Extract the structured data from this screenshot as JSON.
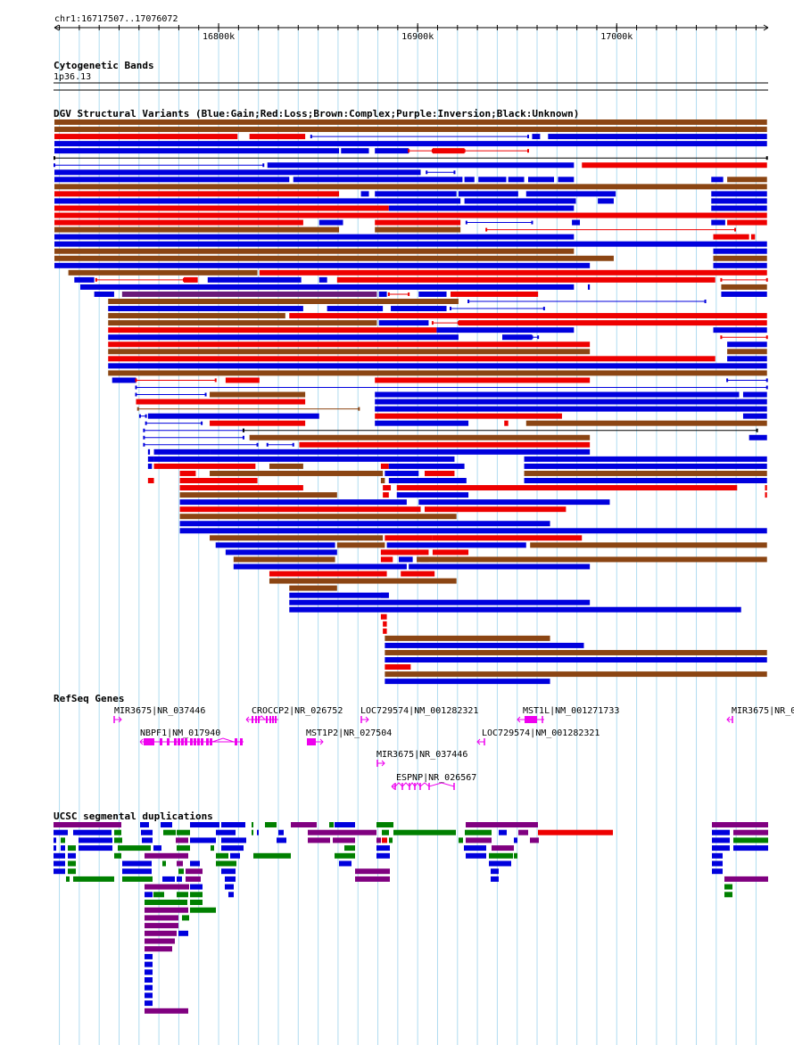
{
  "ruler": {
    "coords": "chr1:16717507..17076072",
    "start": 16717507,
    "end": 17076072,
    "ticks": [
      {
        "pos": 16800000,
        "label": "16800k"
      },
      {
        "pos": 16900000,
        "label": "16900k"
      },
      {
        "pos": 17000000,
        "label": "17000k"
      }
    ]
  },
  "cytoband": {
    "title": "Cytogenetic Bands",
    "label": "1p36.13"
  },
  "dgv": {
    "title": "DGV Structural Variants (Blue:Gain;Red:Loss;Brown:Complex;Purple:Inversion;Black:Unknown)",
    "colors": {
      "B": "#0000dd",
      "R": "#ee0000",
      "N": "#8b4513",
      "P": "#6a1b7a",
      "K": "#000000"
    },
    "note": "Each row: [kb_start, kb_end, color_code, style] where style 's' = solid bar, 'l' = thin line with end caps; positions in kb from 16717507",
    "rows": [
      [
        [
          0,
          358,
          "N",
          "s"
        ]
      ],
      [
        [
          0,
          358,
          "N",
          "s"
        ]
      ],
      [
        [
          0,
          92,
          "R",
          "s"
        ],
        [
          98,
          126,
          "R",
          "s"
        ],
        [
          129,
          238,
          "B",
          "l"
        ],
        [
          240,
          244,
          "B",
          "s"
        ],
        [
          248,
          358,
          "B",
          "s"
        ]
      ],
      [
        [
          0,
          358,
          "B",
          "s"
        ]
      ],
      [
        [
          0,
          143,
          "B",
          "s"
        ],
        [
          144,
          158,
          "B",
          "s"
        ],
        [
          161,
          178,
          "B",
          "s"
        ],
        [
          178,
          190,
          "R",
          "l"
        ],
        [
          190,
          206,
          "R",
          "s"
        ],
        [
          206,
          238,
          "R",
          "l"
        ]
      ],
      [
        [
          0,
          358,
          "K",
          "l"
        ]
      ],
      [
        [
          0,
          105,
          "B",
          "l"
        ],
        [
          107,
          261,
          "B",
          "s"
        ],
        [
          265,
          358,
          "R",
          "s"
        ]
      ],
      [
        [
          0,
          184,
          "B",
          "s"
        ],
        [
          187,
          201,
          "B",
          "l"
        ]
      ],
      [
        [
          0,
          118,
          "B",
          "s"
        ],
        [
          120,
          205,
          "B",
          "s"
        ],
        [
          206,
          211,
          "B",
          "s"
        ],
        [
          213,
          227,
          "B",
          "s"
        ],
        [
          228,
          236,
          "B",
          "s"
        ],
        [
          238,
          251,
          "B",
          "s"
        ],
        [
          253,
          261,
          "B",
          "s"
        ],
        [
          330,
          336,
          "B",
          "s"
        ],
        [
          338,
          358,
          "N",
          "s"
        ]
      ],
      [
        [
          0,
          358,
          "N",
          "s"
        ]
      ],
      [
        [
          0,
          143,
          "R",
          "s"
        ],
        [
          154,
          158,
          "B",
          "s"
        ],
        [
          161,
          202,
          "B",
          "s"
        ],
        [
          203,
          233,
          "B",
          "s"
        ],
        [
          237,
          282,
          "B",
          "s"
        ],
        [
          330,
          358,
          "B",
          "s"
        ]
      ],
      [
        [
          0,
          204,
          "B",
          "s"
        ],
        [
          206,
          262,
          "B",
          "s"
        ],
        [
          273,
          281,
          "B",
          "s"
        ],
        [
          330,
          358,
          "B",
          "s"
        ]
      ],
      [
        [
          0,
          168,
          "R",
          "s"
        ],
        [
          168,
          261,
          "B",
          "s"
        ],
        [
          330,
          358,
          "B",
          "s"
        ]
      ],
      [
        [
          0,
          358,
          "R",
          "s"
        ]
      ],
      [
        [
          0,
          125,
          "R",
          "s"
        ],
        [
          133,
          145,
          "B",
          "s"
        ],
        [
          161,
          204,
          "R",
          "s"
        ],
        [
          207,
          240,
          "B",
          "l"
        ],
        [
          260,
          264,
          "B",
          "s"
        ],
        [
          330,
          337,
          "B",
          "s"
        ],
        [
          338,
          358,
          "R",
          "s"
        ]
      ],
      [
        [
          0,
          143,
          "N",
          "s"
        ],
        [
          161,
          204,
          "N",
          "s"
        ],
        [
          217,
          342,
          "R",
          "l"
        ]
      ],
      [
        [
          0,
          261,
          "B",
          "s"
        ],
        [
          331,
          349,
          "R",
          "s"
        ],
        [
          350,
          352,
          "R",
          "s"
        ]
      ],
      [
        [
          0,
          358,
          "B",
          "s"
        ]
      ],
      [
        [
          0,
          261,
          "N",
          "s"
        ],
        [
          331,
          358,
          "B",
          "s"
        ]
      ],
      [
        [
          0,
          281,
          "N",
          "s"
        ],
        [
          331,
          358,
          "N",
          "s"
        ]
      ],
      [
        [
          0,
          269,
          "B",
          "s"
        ],
        [
          331,
          358,
          "B",
          "s"
        ]
      ],
      [
        [
          7,
          102,
          "N",
          "s"
        ],
        [
          103,
          358,
          "R",
          "s"
        ]
      ],
      [
        [
          10,
          20,
          "B",
          "s"
        ],
        [
          21,
          65,
          "R",
          "l"
        ],
        [
          65,
          72,
          "R",
          "s"
        ],
        [
          77,
          124,
          "B",
          "s"
        ],
        [
          133,
          137,
          "B",
          "s"
        ],
        [
          142,
          332,
          "R",
          "s"
        ],
        [
          335,
          358,
          "R",
          "l"
        ]
      ],
      [
        [
          13,
          261,
          "B",
          "s"
        ],
        [
          268,
          269,
          "B",
          "s"
        ],
        [
          335,
          358,
          "N",
          "s"
        ]
      ],
      [
        [
          20,
          30,
          "B",
          "s"
        ],
        [
          34,
          162,
          "P",
          "s"
        ],
        [
          163,
          167,
          "B",
          "s"
        ],
        [
          168,
          178,
          "R",
          "l"
        ],
        [
          183,
          197,
          "B",
          "s"
        ],
        [
          199,
          243,
          "R",
          "s"
        ],
        [
          335,
          358,
          "B",
          "s"
        ]
      ],
      [
        [
          27,
          203,
          "N",
          "s"
        ],
        [
          208,
          327,
          "B",
          "l"
        ]
      ],
      [
        [
          27,
          125,
          "B",
          "s"
        ],
        [
          137,
          165,
          "B",
          "s"
        ],
        [
          169,
          197,
          "B",
          "s"
        ],
        [
          199,
          246,
          "B",
          "l"
        ]
      ],
      [
        [
          27,
          116,
          "N",
          "s"
        ],
        [
          118,
          358,
          "R",
          "s"
        ]
      ],
      [
        [
          27,
          162,
          "N",
          "s"
        ],
        [
          163,
          188,
          "B",
          "s"
        ],
        [
          190,
          203,
          "R",
          "l"
        ],
        [
          203,
          358,
          "R",
          "s"
        ]
      ],
      [
        [
          27,
          192,
          "R",
          "s"
        ],
        [
          192,
          261,
          "B",
          "s"
        ],
        [
          331,
          358,
          "B",
          "s"
        ]
      ],
      [
        [
          27,
          203,
          "B",
          "s"
        ],
        [
          225,
          240,
          "B",
          "s"
        ],
        [
          240,
          243,
          "B",
          "l"
        ],
        [
          335,
          358,
          "R",
          "l"
        ]
      ],
      [
        [
          27,
          269,
          "R",
          "s"
        ],
        [
          338,
          358,
          "B",
          "s"
        ]
      ],
      [
        [
          27,
          269,
          "N",
          "s"
        ],
        [
          338,
          358,
          "N",
          "s"
        ]
      ],
      [
        [
          27,
          332,
          "R",
          "s"
        ],
        [
          338,
          358,
          "B",
          "s"
        ]
      ],
      [
        [
          27,
          358,
          "B",
          "s"
        ]
      ],
      [
        [
          27,
          358,
          "N",
          "s"
        ]
      ],
      [
        [
          29,
          41,
          "B",
          "s"
        ],
        [
          41,
          81,
          "R",
          "l"
        ],
        [
          86,
          103,
          "R",
          "s"
        ],
        [
          161,
          269,
          "R",
          "s"
        ],
        [
          338,
          358,
          "B",
          "l"
        ]
      ],
      [
        [
          41,
          358,
          "B",
          "l"
        ]
      ],
      [
        [
          41,
          76,
          "B",
          "l"
        ],
        [
          78,
          126,
          "N",
          "s"
        ],
        [
          161,
          344,
          "B",
          "s"
        ],
        [
          346,
          358,
          "B",
          "s"
        ]
      ],
      [
        [
          41,
          126,
          "R",
          "s"
        ],
        [
          161,
          358,
          "B",
          "s"
        ]
      ],
      [
        [
          42,
          153,
          "N",
          "l"
        ],
        [
          161,
          358,
          "B",
          "s"
        ]
      ],
      [
        [
          43,
          46,
          "B",
          "l"
        ],
        [
          47,
          133,
          "B",
          "s"
        ],
        [
          161,
          255,
          "R",
          "s"
        ],
        [
          346,
          358,
          "B",
          "s"
        ]
      ],
      [
        [
          46,
          74,
          "B",
          "l"
        ],
        [
          78,
          126,
          "R",
          "s"
        ],
        [
          161,
          208,
          "B",
          "s"
        ],
        [
          226,
          228,
          "R",
          "s"
        ],
        [
          237,
          358,
          "N",
          "s"
        ]
      ],
      [
        [
          45,
          95,
          "B",
          "l"
        ],
        [
          95,
          353,
          "K",
          "l"
        ]
      ],
      [
        [
          45,
          95,
          "B",
          "l"
        ],
        [
          98,
          269,
          "N",
          "s"
        ],
        [
          349,
          358,
          "B",
          "s"
        ]
      ],
      [
        [
          45,
          102,
          "B",
          "l"
        ],
        [
          107,
          120,
          "B",
          "l"
        ],
        [
          123,
          269,
          "R",
          "s"
        ]
      ],
      [
        [
          47,
          48,
          "B",
          "s"
        ],
        [
          50,
          78,
          "B",
          "s"
        ],
        [
          78,
          269,
          "B",
          "s"
        ]
      ],
      [
        [
          47,
          50,
          "B",
          "s"
        ],
        [
          50,
          201,
          "B",
          "s"
        ],
        [
          236,
          358,
          "B",
          "s"
        ]
      ],
      [
        [
          47,
          49,
          "B",
          "s"
        ],
        [
          50,
          101,
          "R",
          "s"
        ],
        [
          108,
          125,
          "N",
          "s"
        ],
        [
          164,
          168,
          "R",
          "s"
        ],
        [
          168,
          206,
          "B",
          "s"
        ],
        [
          236,
          358,
          "B",
          "s"
        ]
      ],
      [
        [
          63,
          71,
          "R",
          "s"
        ],
        [
          78,
          165,
          "N",
          "s"
        ],
        [
          166,
          183,
          "B",
          "s"
        ],
        [
          186,
          201,
          "R",
          "s"
        ],
        [
          236,
          358,
          "N",
          "s"
        ]
      ],
      [
        [
          47,
          50,
          "R",
          "s"
        ],
        [
          63,
          102,
          "R",
          "s"
        ],
        [
          164,
          166,
          "N",
          "s"
        ],
        [
          168,
          207,
          "B",
          "s"
        ],
        [
          236,
          358,
          "B",
          "s"
        ]
      ],
      [
        [
          63,
          125,
          "R",
          "s"
        ],
        [
          165,
          169,
          "R",
          "s"
        ],
        [
          172,
          343,
          "R",
          "s"
        ],
        [
          357,
          358,
          "R",
          "s"
        ]
      ],
      [
        [
          63,
          142,
          "N",
          "s"
        ],
        [
          165,
          168,
          "R",
          "s"
        ],
        [
          172,
          208,
          "B",
          "s"
        ],
        [
          357,
          358,
          "R",
          "s"
        ]
      ],
      [
        [
          63,
          177,
          "B",
          "s"
        ],
        [
          183,
          279,
          "B",
          "s"
        ]
      ],
      [
        [
          63,
          184,
          "R",
          "s"
        ],
        [
          186,
          257,
          "R",
          "s"
        ]
      ],
      [
        [
          63,
          202,
          "N",
          "s"
        ]
      ],
      [
        [
          63,
          249,
          "B",
          "s"
        ]
      ],
      [
        [
          63,
          358,
          "B",
          "s"
        ]
      ],
      [
        [
          78,
          165,
          "N",
          "s"
        ],
        [
          166,
          190,
          "R",
          "s"
        ],
        [
          190,
          265,
          "R",
          "s"
        ]
      ],
      [
        [
          81,
          141,
          "B",
          "s"
        ],
        [
          142,
          166,
          "N",
          "s"
        ],
        [
          167,
          237,
          "B",
          "s"
        ],
        [
          239,
          358,
          "N",
          "s"
        ]
      ],
      [
        [
          86,
          142,
          "B",
          "s"
        ],
        [
          164,
          188,
          "R",
          "s"
        ],
        [
          190,
          208,
          "R",
          "s"
        ]
      ],
      [
        [
          90,
          141,
          "N",
          "s"
        ],
        [
          164,
          170,
          "R",
          "s"
        ],
        [
          173,
          180,
          "B",
          "s"
        ],
        [
          182,
          188,
          "N",
          "s"
        ],
        [
          184,
          358,
          "N",
          "s"
        ]
      ],
      [
        [
          90,
          177,
          "B",
          "s"
        ],
        [
          178,
          269,
          "B",
          "s"
        ]
      ],
      [
        [
          108,
          167,
          "R",
          "s"
        ],
        [
          174,
          191,
          "R",
          "s"
        ]
      ],
      [
        [
          108,
          202,
          "N",
          "s"
        ]
      ],
      [
        [
          118,
          142,
          "N",
          "s"
        ]
      ],
      [
        [
          118,
          168,
          "B",
          "s"
        ],
        [
          164,
          168,
          "B",
          "s"
        ]
      ],
      [
        [
          118,
          269,
          "B",
          "s"
        ]
      ],
      [
        [
          118,
          345,
          "B",
          "s"
        ]
      ],
      [
        [
          164,
          167,
          "R",
          "s"
        ]
      ],
      [
        [
          165,
          167,
          "R",
          "s"
        ]
      ],
      [
        [
          165,
          167,
          "R",
          "s"
        ]
      ],
      [
        [
          166,
          249,
          "N",
          "s"
        ]
      ],
      [
        [
          166,
          266,
          "B",
          "s"
        ]
      ],
      [
        [
          166,
          358,
          "N",
          "s"
        ]
      ],
      [
        [
          166,
          358,
          "B",
          "s"
        ]
      ],
      [
        [
          166,
          179,
          "R",
          "s"
        ]
      ],
      [
        [
          166,
          358,
          "N",
          "s"
        ]
      ],
      [
        [
          166,
          249,
          "B",
          "s"
        ]
      ]
    ]
  },
  "refseq": {
    "title": "RefSeq Genes",
    "genes": [
      {
        "label": "MIR3675|NR_037446"
      },
      {
        "label": "CROCCP2|NR_026752"
      },
      {
        "label": "LOC729574|NM_001282321"
      },
      {
        "label": "MST1L|NM_001271733"
      },
      {
        "label": "MIR3675|NR_0"
      },
      {
        "label": "NBPF1|NM_017940"
      },
      {
        "label": "MST1P2|NR_027504"
      },
      {
        "label": "LOC729574|NM_001282321"
      },
      {
        "label": "MIR3675|NR_037446"
      },
      {
        "label": "ESPNP|NR_026567"
      }
    ]
  },
  "segdups": {
    "title": "UCSC segmental duplications",
    "colors": {
      "B": "#0000dd",
      "G": "#008000",
      "P": "#800080",
      "R": "#ee0000",
      "O": "#c0a000"
    }
  }
}
